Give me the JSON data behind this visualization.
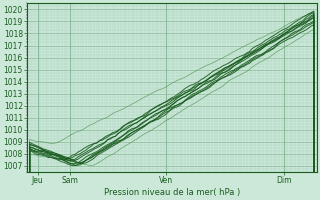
{
  "title": "Pression niveau de la mer( hPa )",
  "ylabel_vals": [
    1007,
    1008,
    1009,
    1010,
    1011,
    1012,
    1013,
    1014,
    1015,
    1016,
    1017,
    1018,
    1019,
    1020
  ],
  "ylim": [
    1006.5,
    1020.5
  ],
  "xlim": [
    0,
    108
  ],
  "xtick_positions": [
    4,
    16,
    52,
    96
  ],
  "xtick_labels": [
    "Jeu",
    "Sam",
    "Ven",
    "Dim"
  ],
  "background_color": "#cce8d8",
  "grid_major_color": "#88b898",
  "grid_minor_color": "#aad0bc",
  "line_color": "#1a5c20",
  "line_color_light": "#3a8a40",
  "figsize": [
    3.2,
    2.0
  ],
  "dpi": 100
}
